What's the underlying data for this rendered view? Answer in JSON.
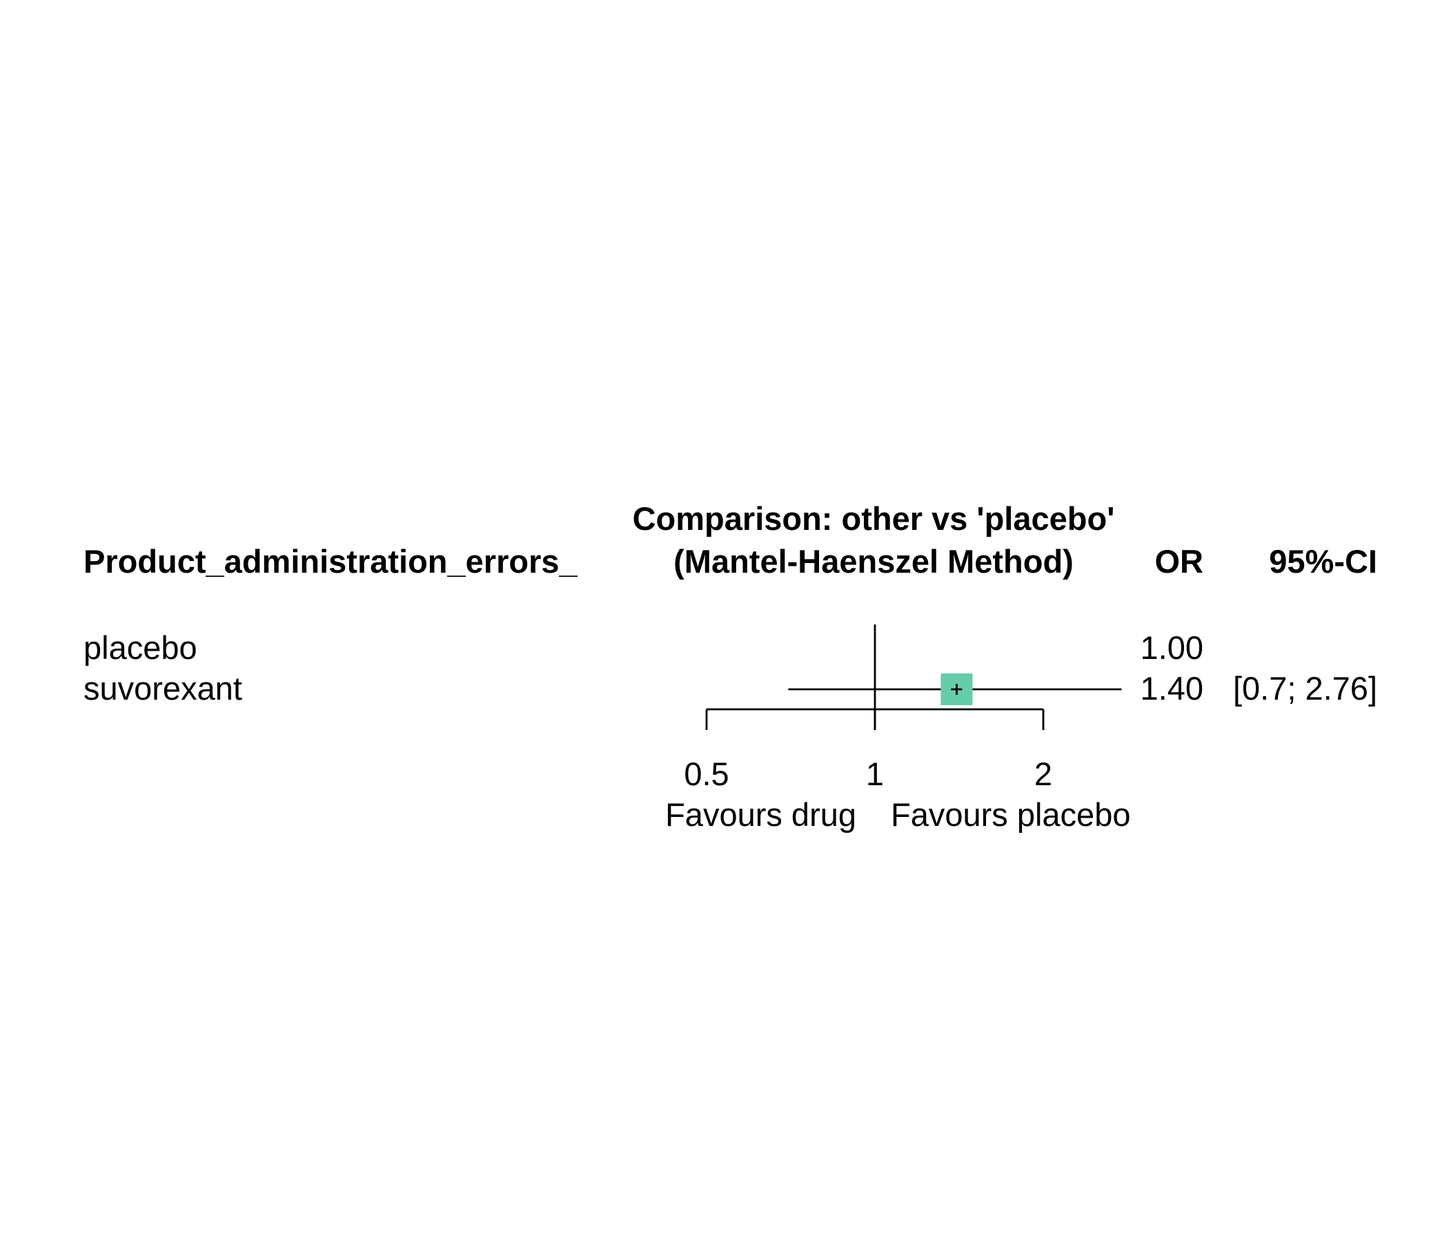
{
  "chart_data": {
    "type": "forest",
    "title_line1": "Comparison: other vs 'placebo'",
    "title_line2": "(Mantel-Haenszel Method)",
    "row_header": "Product_administration_errors_",
    "or_header": "OR",
    "ci_header": "95%-CI",
    "log_scale": true,
    "reference_value": 1,
    "ticks": [
      0.5,
      1,
      2
    ],
    "tick_labels": [
      "0.5",
      "1",
      "2"
    ],
    "favours_left": "Favours drug",
    "favours_right": "Favours placebo",
    "colors": {
      "box": "#66CDAA",
      "line": "#000000"
    },
    "rows": [
      {
        "label": "placebo",
        "or": 1.0,
        "or_text": "1.00",
        "ci_lower": null,
        "ci_upper": null,
        "ci_text": ""
      },
      {
        "label": "suvorexant",
        "or": 1.4,
        "or_text": "1.40",
        "ci_lower": 0.7,
        "ci_upper": 2.76,
        "ci_text": "[0.7; 2.76]"
      }
    ]
  }
}
